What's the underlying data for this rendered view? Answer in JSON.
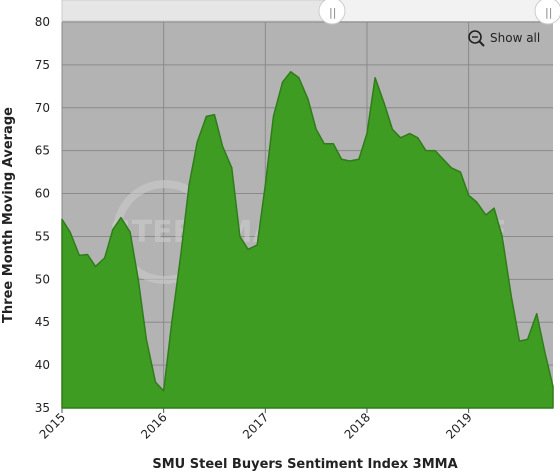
{
  "chart_data": {
    "type": "area",
    "title": "SMU Steel Buyers Sentiment Index 3MMA",
    "y_label": "Three Month Moving Average",
    "watermark": "STEEL MARKET UPDATE",
    "color": "#3f9c23",
    "x": [
      2015,
      2015.08,
      2015.17,
      2015.25,
      2015.33,
      2015.42,
      2015.5,
      2015.58,
      2015.67,
      2015.75,
      2015.83,
      2015.92,
      2016,
      2016.08,
      2016.17,
      2016.25,
      2016.33,
      2016.42,
      2016.5,
      2016.58,
      2016.67,
      2016.75,
      2016.83,
      2016.92,
      2017,
      2017.08,
      2017.17,
      2017.25,
      2017.33,
      2017.42,
      2017.5,
      2017.58,
      2017.67,
      2017.75,
      2017.83,
      2017.92,
      2018,
      2018.08,
      2018.17,
      2018.25,
      2018.33,
      2018.42,
      2018.5,
      2018.58,
      2018.67,
      2018.75,
      2018.83,
      2018.92,
      2019,
      2019.08,
      2019.17,
      2019.25,
      2019.33,
      2019.42,
      2019.5,
      2019.58,
      2019.67,
      2019.75,
      2019.83
    ],
    "values": [
      57,
      55.5,
      52.8,
      52.9,
      51.5,
      52.5,
      55.8,
      57.2,
      55.5,
      50,
      43,
      38,
      37,
      45,
      53,
      61,
      66,
      69,
      69.2,
      65.5,
      63,
      55,
      53.5,
      54,
      61,
      69,
      73,
      74.2,
      73.5,
      71,
      67.5,
      65.8,
      65.8,
      64,
      63.8,
      64,
      67,
      73.5,
      70.5,
      67.5,
      66.5,
      67,
      66.5,
      65,
      65,
      64,
      63,
      62.5,
      59.8,
      59,
      57.5,
      58.3,
      55,
      48,
      42.8,
      43,
      46,
      41.5,
      37.5
    ],
    "xlim": [
      2015,
      2019.83
    ],
    "xticks": [
      2015,
      2016,
      2017,
      2018,
      2019
    ],
    "ylim": [
      35,
      80
    ],
    "yticks": [
      35,
      40,
      45,
      50,
      55,
      60,
      65,
      70,
      75,
      80
    ],
    "grid": true
  },
  "controls": {
    "show_all": "Show all"
  }
}
